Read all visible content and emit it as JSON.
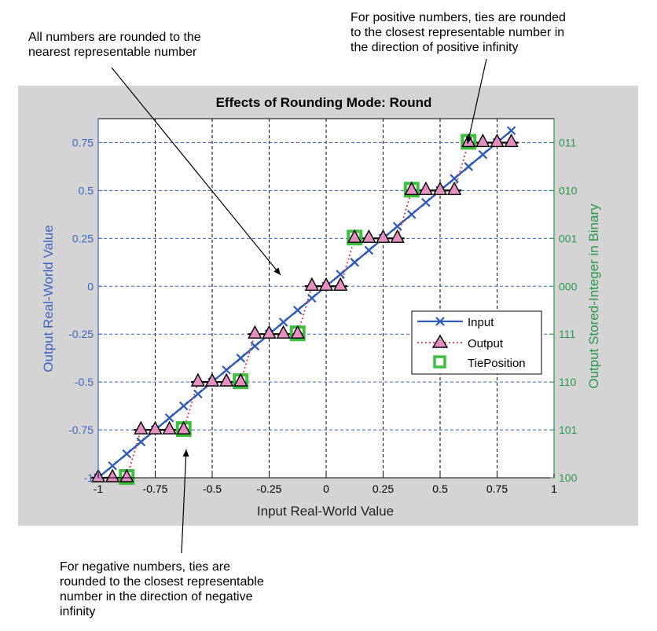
{
  "annotations": {
    "top_left": "All numbers are rounded to the\nnearest representable number",
    "top_right": "For positive numbers, ties are rounded\nto the closest representable number in\nthe direction of positive infinity",
    "bottom": "For negative numbers, ties are\nrounded  to the closest representable\nnumber in the direction of negative\ninfinity"
  },
  "colors": {
    "input": "#2e5bb8",
    "output_line": "#e8373a",
    "output_marker": "#e58fc0",
    "tie": "#3fbf3f",
    "left_axis": "#3a66c4",
    "right_axis": "#2a9a4a"
  },
  "chart_data": {
    "type": "line",
    "title": "Effects of Rounding Mode: Round",
    "xlabel": "Input Real-World Value",
    "ylabel": "Output Real-World Value",
    "ylabel_right": "Output Stored-Integer in Binary",
    "xlim": [
      -1,
      1
    ],
    "ylim": [
      -1,
      0.875
    ],
    "grid": true,
    "x_ticks": [
      -1,
      -0.75,
      -0.5,
      -0.25,
      0,
      0.25,
      0.5,
      0.75,
      1
    ],
    "x_tick_labels": [
      "-1",
      "-0.75",
      "-0.5",
      "-0.25",
      "0",
      "0.25",
      "0.5",
      "0.75",
      "1"
    ],
    "y_ticks": [
      -1,
      -0.75,
      -0.5,
      -0.25,
      0,
      0.25,
      0.5,
      0.75
    ],
    "y_tick_labels": [
      "-1",
      "-0.75",
      "-0.5",
      "-0.25",
      "0",
      "0.25",
      "0.5",
      "0.75"
    ],
    "y_right_tick_labels": [
      "100",
      "101",
      "110",
      "111",
      "000",
      "001",
      "010",
      "011"
    ],
    "legend_position": "right-middle",
    "legend": [
      "Input",
      "Output",
      "TiePosition"
    ],
    "series": [
      {
        "name": "Input",
        "x": [
          -1,
          -0.9375,
          -0.875,
          -0.8125,
          -0.75,
          -0.6875,
          -0.625,
          -0.5625,
          -0.5,
          -0.4375,
          -0.375,
          -0.3125,
          -0.25,
          -0.1875,
          -0.125,
          -0.0625,
          0,
          0.0625,
          0.125,
          0.1875,
          0.25,
          0.3125,
          0.375,
          0.4375,
          0.5,
          0.5625,
          0.625,
          0.6875,
          0.75,
          0.8125
        ],
        "y": [
          -1,
          -0.9375,
          -0.875,
          -0.8125,
          -0.75,
          -0.6875,
          -0.625,
          -0.5625,
          -0.5,
          -0.4375,
          -0.375,
          -0.3125,
          -0.25,
          -0.1875,
          -0.125,
          -0.0625,
          0,
          0.0625,
          0.125,
          0.1875,
          0.25,
          0.3125,
          0.375,
          0.4375,
          0.5,
          0.5625,
          0.625,
          0.6875,
          0.75,
          0.8125
        ]
      },
      {
        "name": "Output",
        "x": [
          -1,
          -0.9375,
          -0.875,
          -0.8125,
          -0.75,
          -0.6875,
          -0.625,
          -0.5625,
          -0.5,
          -0.4375,
          -0.375,
          -0.3125,
          -0.25,
          -0.1875,
          -0.125,
          -0.0625,
          0,
          0.0625,
          0.125,
          0.1875,
          0.25,
          0.3125,
          0.375,
          0.4375,
          0.5,
          0.5625,
          0.625,
          0.6875,
          0.75,
          0.8125
        ],
        "y": [
          -1,
          -1,
          -1,
          -0.75,
          -0.75,
          -0.75,
          -0.75,
          -0.5,
          -0.5,
          -0.5,
          -0.5,
          -0.25,
          -0.25,
          -0.25,
          -0.25,
          0,
          0,
          0,
          0.25,
          0.25,
          0.25,
          0.25,
          0.5,
          0.5,
          0.5,
          0.5,
          0.75,
          0.75,
          0.75,
          0.75
        ]
      },
      {
        "name": "TiePosition",
        "x": [
          -0.875,
          -0.625,
          -0.375,
          -0.125,
          0.125,
          0.375,
          0.625
        ],
        "y": [
          -1,
          -0.75,
          -0.5,
          -0.25,
          0.25,
          0.5,
          0.75
        ]
      }
    ]
  }
}
